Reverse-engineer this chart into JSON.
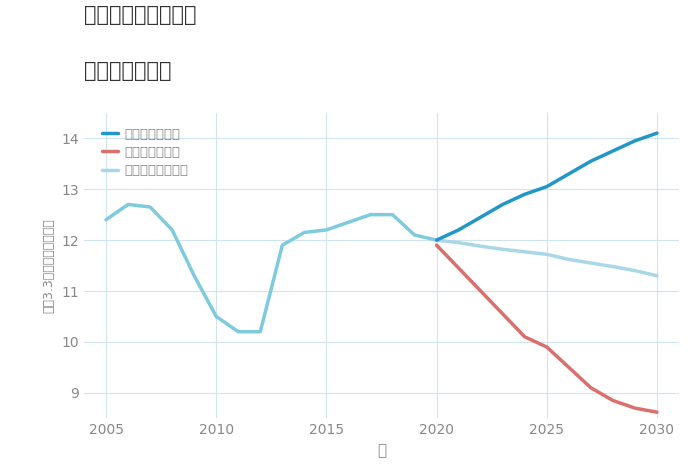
{
  "title_line1": "福岡県筑後市長崎の",
  "title_line2": "土地の価格推移",
  "xlabel": "年",
  "ylabel": "坪（3.3㎡）単価（万円）",
  "xlim": [
    2004,
    2031
  ],
  "ylim": [
    8.5,
    14.5
  ],
  "yticks": [
    9,
    10,
    11,
    12,
    13,
    14
  ],
  "xticks": [
    2005,
    2010,
    2015,
    2020,
    2025,
    2030
  ],
  "historical_x": [
    2005,
    2006,
    2007,
    2008,
    2009,
    2010,
    2011,
    2012,
    2013,
    2014,
    2015,
    2016,
    2017,
    2018,
    2019,
    2020
  ],
  "historical_y": [
    12.4,
    12.7,
    12.65,
    12.2,
    11.3,
    10.5,
    10.2,
    10.2,
    11.9,
    12.15,
    12.2,
    12.35,
    12.5,
    12.5,
    12.1,
    12.0
  ],
  "good_x": [
    2020,
    2021,
    2022,
    2023,
    2024,
    2025,
    2026,
    2027,
    2028,
    2029,
    2030
  ],
  "good_y": [
    12.0,
    12.2,
    12.45,
    12.7,
    12.9,
    13.05,
    13.3,
    13.55,
    13.75,
    13.95,
    14.1
  ],
  "bad_x": [
    2020,
    2021,
    2022,
    2023,
    2024,
    2025,
    2026,
    2027,
    2028,
    2029,
    2030
  ],
  "bad_y": [
    11.9,
    11.45,
    11.0,
    10.55,
    10.1,
    9.9,
    9.5,
    9.1,
    8.85,
    8.7,
    8.62
  ],
  "normal_x": [
    2020,
    2021,
    2022,
    2023,
    2024,
    2025,
    2026,
    2027,
    2028,
    2029,
    2030
  ],
  "normal_y": [
    12.0,
    11.95,
    11.88,
    11.82,
    11.77,
    11.72,
    11.62,
    11.55,
    11.48,
    11.4,
    11.3
  ],
  "historical_color": "#7ecbde",
  "good_color": "#2196c8",
  "bad_color": "#d9706e",
  "normal_color": "#a8d8e8",
  "legend_good": "グッドシナリオ",
  "legend_bad": "バッドシナリオ",
  "legend_normal": "ノーマルシナリオ",
  "background_color": "#ffffff",
  "grid_color": "#d0e4ef",
  "title_color": "#333333",
  "axis_color": "#888888"
}
